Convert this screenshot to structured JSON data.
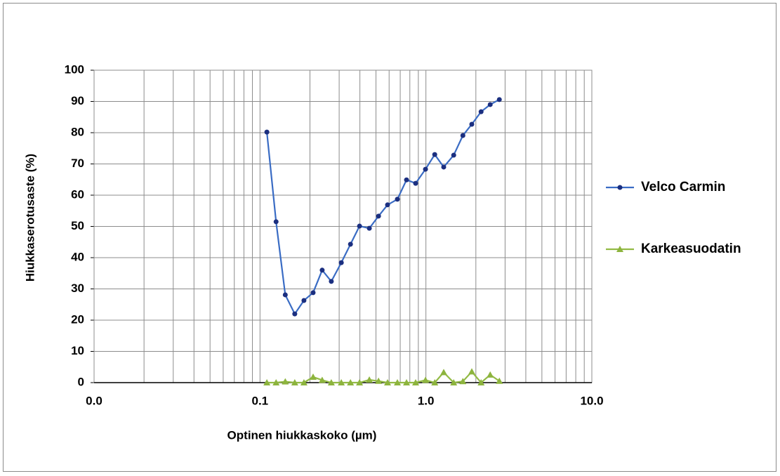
{
  "chart_data": {
    "type": "line",
    "x_label": "Optinen hiukkaskoko (µm)",
    "y_label": "Hiukkaserotusaste (%)",
    "x_log": true,
    "grid": true,
    "minor_grid": true,
    "legend": "right",
    "xlim": [
      0.01,
      10
    ],
    "xticks": [
      {
        "value": 0.01,
        "label": "0.0"
      },
      0.1,
      {
        "value": 1,
        "label": "1.0"
      },
      {
        "value": 10,
        "label": "10.0"
      }
    ],
    "ylim": [
      0,
      100
    ],
    "yticks": [
      0,
      10,
      20,
      30,
      40,
      50,
      60,
      70,
      80,
      90,
      100
    ],
    "x": [
      0.11,
      0.125,
      0.142,
      0.162,
      0.184,
      0.209,
      0.237,
      0.269,
      0.309,
      0.351,
      0.398,
      0.456,
      0.518,
      0.587,
      0.673,
      0.764,
      0.867,
      0.994,
      1.13,
      1.28,
      1.47,
      1.67,
      1.89,
      2.15,
      2.44,
      2.77
    ],
    "series": [
      {
        "name": "Velco Carmin",
        "color": "#3a6cc4",
        "marker_color": "#1b2f80",
        "marker": "circle",
        "values": [
          80.2,
          51.5,
          28.1,
          22,
          26.3,
          28.8,
          36,
          32.4,
          38.4,
          44.3,
          50.1,
          49.4,
          53.3,
          56.9,
          58.7,
          64.9,
          63.8,
          68.3,
          73,
          69,
          72.8,
          79.1,
          82.7,
          86.7,
          89,
          90.6
        ]
      },
      {
        "name": "Karkeasuodatin",
        "color": "#93bb45",
        "marker_color": "#8db43e",
        "marker": "triangle",
        "values": [
          0,
          0,
          0.3,
          0,
          0,
          1.8,
          0.8,
          0,
          0,
          0,
          0,
          0.9,
          0.5,
          0,
          0,
          0,
          0,
          0.8,
          0,
          3.3,
          0,
          0.4,
          3.5,
          0,
          2.5,
          0.5
        ]
      }
    ]
  }
}
